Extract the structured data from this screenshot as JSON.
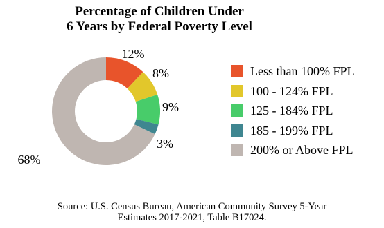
{
  "chart_data": {
    "type": "pie",
    "title_lines": [
      "Percentage of Children Under",
      "6 Years by Federal Poverty Level"
    ],
    "categories": [
      "Less than 100% FPL",
      "100 - 124% FPL",
      "125 - 184% FPL",
      "185 - 199% FPL",
      "200% or Above FPL"
    ],
    "values": [
      12,
      8,
      9,
      3,
      68
    ],
    "data_labels": [
      "12%",
      "8%",
      "9%",
      "3%",
      "68%"
    ],
    "colors": [
      "#e8542b",
      "#e2c72b",
      "#48cc6a",
      "#3f8690",
      "#bfb6b1"
    ],
    "style": "donut",
    "legend_position": "right"
  },
  "source_lines": [
    "Source: U.S. Census Bureau, American Community Survey 5-Year",
    "Estimates 2017-2021, Table B17024."
  ]
}
